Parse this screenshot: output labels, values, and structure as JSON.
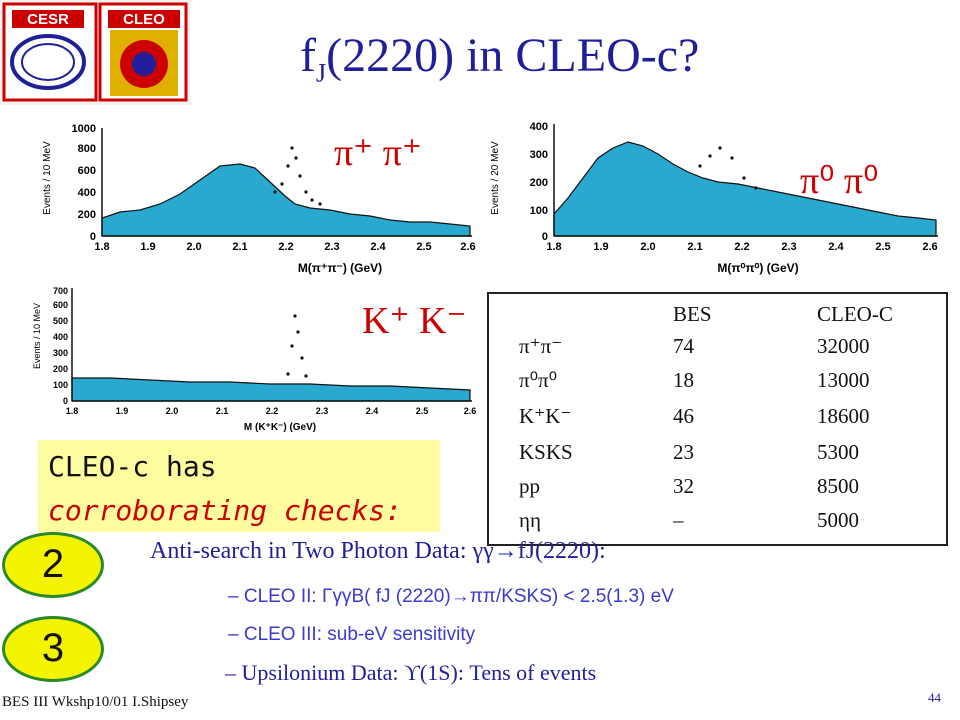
{
  "logos": {
    "cesr": "CESR",
    "cleo": "CLEO"
  },
  "title": {
    "main": "f",
    "sub": "J",
    "rest": "(2220) in CLEO-c?"
  },
  "plots": {
    "pipi": {
      "label": "π⁺ π⁺",
      "ylabel": "Events / 10 MeV",
      "xlabel": "M(π⁺π⁻) (GeV)",
      "yticks": [
        "0",
        "200",
        "400",
        "600",
        "800",
        "1000"
      ],
      "xticks": [
        "1.8",
        "1.9",
        "2.0",
        "2.1",
        "2.2",
        "2.3",
        "2.4",
        "2.5",
        "2.6"
      ]
    },
    "pi0pi0": {
      "label": "π⁰ π⁰",
      "ylabel": "Events / 20 MeV",
      "xlabel": "M(π⁰π⁰) (GeV)",
      "yticks": [
        "0",
        "100",
        "200",
        "300",
        "400"
      ],
      "xticks": [
        "1.8",
        "1.9",
        "2.0",
        "2.1",
        "2.2",
        "2.3",
        "2.4",
        "2.5",
        "2.6"
      ]
    },
    "kk": {
      "label": "K⁺ K⁻",
      "ylabel": "Events / 10 MeV",
      "xlabel": "M (K⁺K⁻) (GeV)",
      "yticks": [
        "0",
        "100",
        "200",
        "300",
        "400",
        "500",
        "600",
        "700"
      ],
      "xticks": [
        "1.8",
        "1.9",
        "2.0",
        "2.1",
        "2.2",
        "2.3",
        "2.4",
        "2.5",
        "2.6"
      ]
    }
  },
  "table": {
    "headers": [
      "BES",
      "CLEO-C"
    ],
    "rows": [
      {
        "mode": "π⁺π⁻",
        "bes": "74",
        "cleo": "32000"
      },
      {
        "mode": "π⁰π⁰",
        "bes": "18",
        "cleo": "13000"
      },
      {
        "mode": "K⁺K⁻",
        "bes": "46",
        "cleo": "18600"
      },
      {
        "mode": "KSKS",
        "bes": "23",
        "cleo": "5300"
      },
      {
        "mode": "pp",
        "bes": "32",
        "cleo": "8500"
      },
      {
        "mode": "ηη",
        "bes": "–",
        "cleo": "5000"
      }
    ]
  },
  "callout": {
    "line1": "CLEO-c has",
    "line2": "corroborating checks:"
  },
  "badges": [
    "2",
    "3"
  ],
  "anti_search": "Anti-search in Two Photon Data: γγ→fJ(2220):",
  "bullets": [
    "– CLEO II: ΓγγB( fJ (2220)→ππ/KSKS) < 2.5(1.3) eV",
    "– CLEO III: sub-eV sensitivity"
  ],
  "upsilon": "– Upsilonium Data: ϒ(1S): Tens of events",
  "footer": "BES III Wkshp10/01 I.Shipsey",
  "page_number": "44",
  "colors": {
    "fill": "#29a8d0",
    "title": "#1f1f9a",
    "label": "#cc0000",
    "callout_bg": "#fdfda0",
    "badge": "#f4f400"
  }
}
